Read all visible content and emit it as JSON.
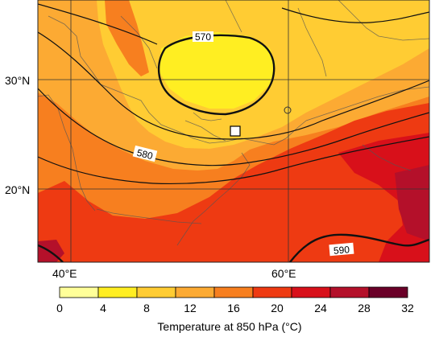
{
  "map": {
    "lat_labels": [
      {
        "text": "30°N",
        "lat": 30
      },
      {
        "text": "20°N",
        "lat": 20
      }
    ],
    "lon_labels": [
      {
        "text": "40°E",
        "lon": 40
      },
      {
        "text": "60°E",
        "lon": 60
      }
    ],
    "contour_labels": [
      "570",
      "580",
      "590"
    ],
    "marker": "site-marker-square",
    "small_circle": "site-marker-circle"
  },
  "colorbar": {
    "title": "Temperature at 850 hPa (°C)",
    "ticks": [
      "0",
      "4",
      "8",
      "12",
      "16",
      "20",
      "24",
      "28",
      "32"
    ],
    "colors": [
      "#ffff99",
      "#ffee22",
      "#ffcc33",
      "#fcaa33",
      "#f77f1f",
      "#ee3a12",
      "#d8101a",
      "#b4102a",
      "#6a0028"
    ]
  },
  "fields": {
    "background": "#f77f1f",
    "level_12_16": "#fcaa33",
    "level_8_12": "#ffcc33",
    "level_4_8": "#ffee22",
    "level_20_24": "#ee3a12",
    "level_24_28": "#d8101a",
    "level_28_32": "#b4102a"
  }
}
